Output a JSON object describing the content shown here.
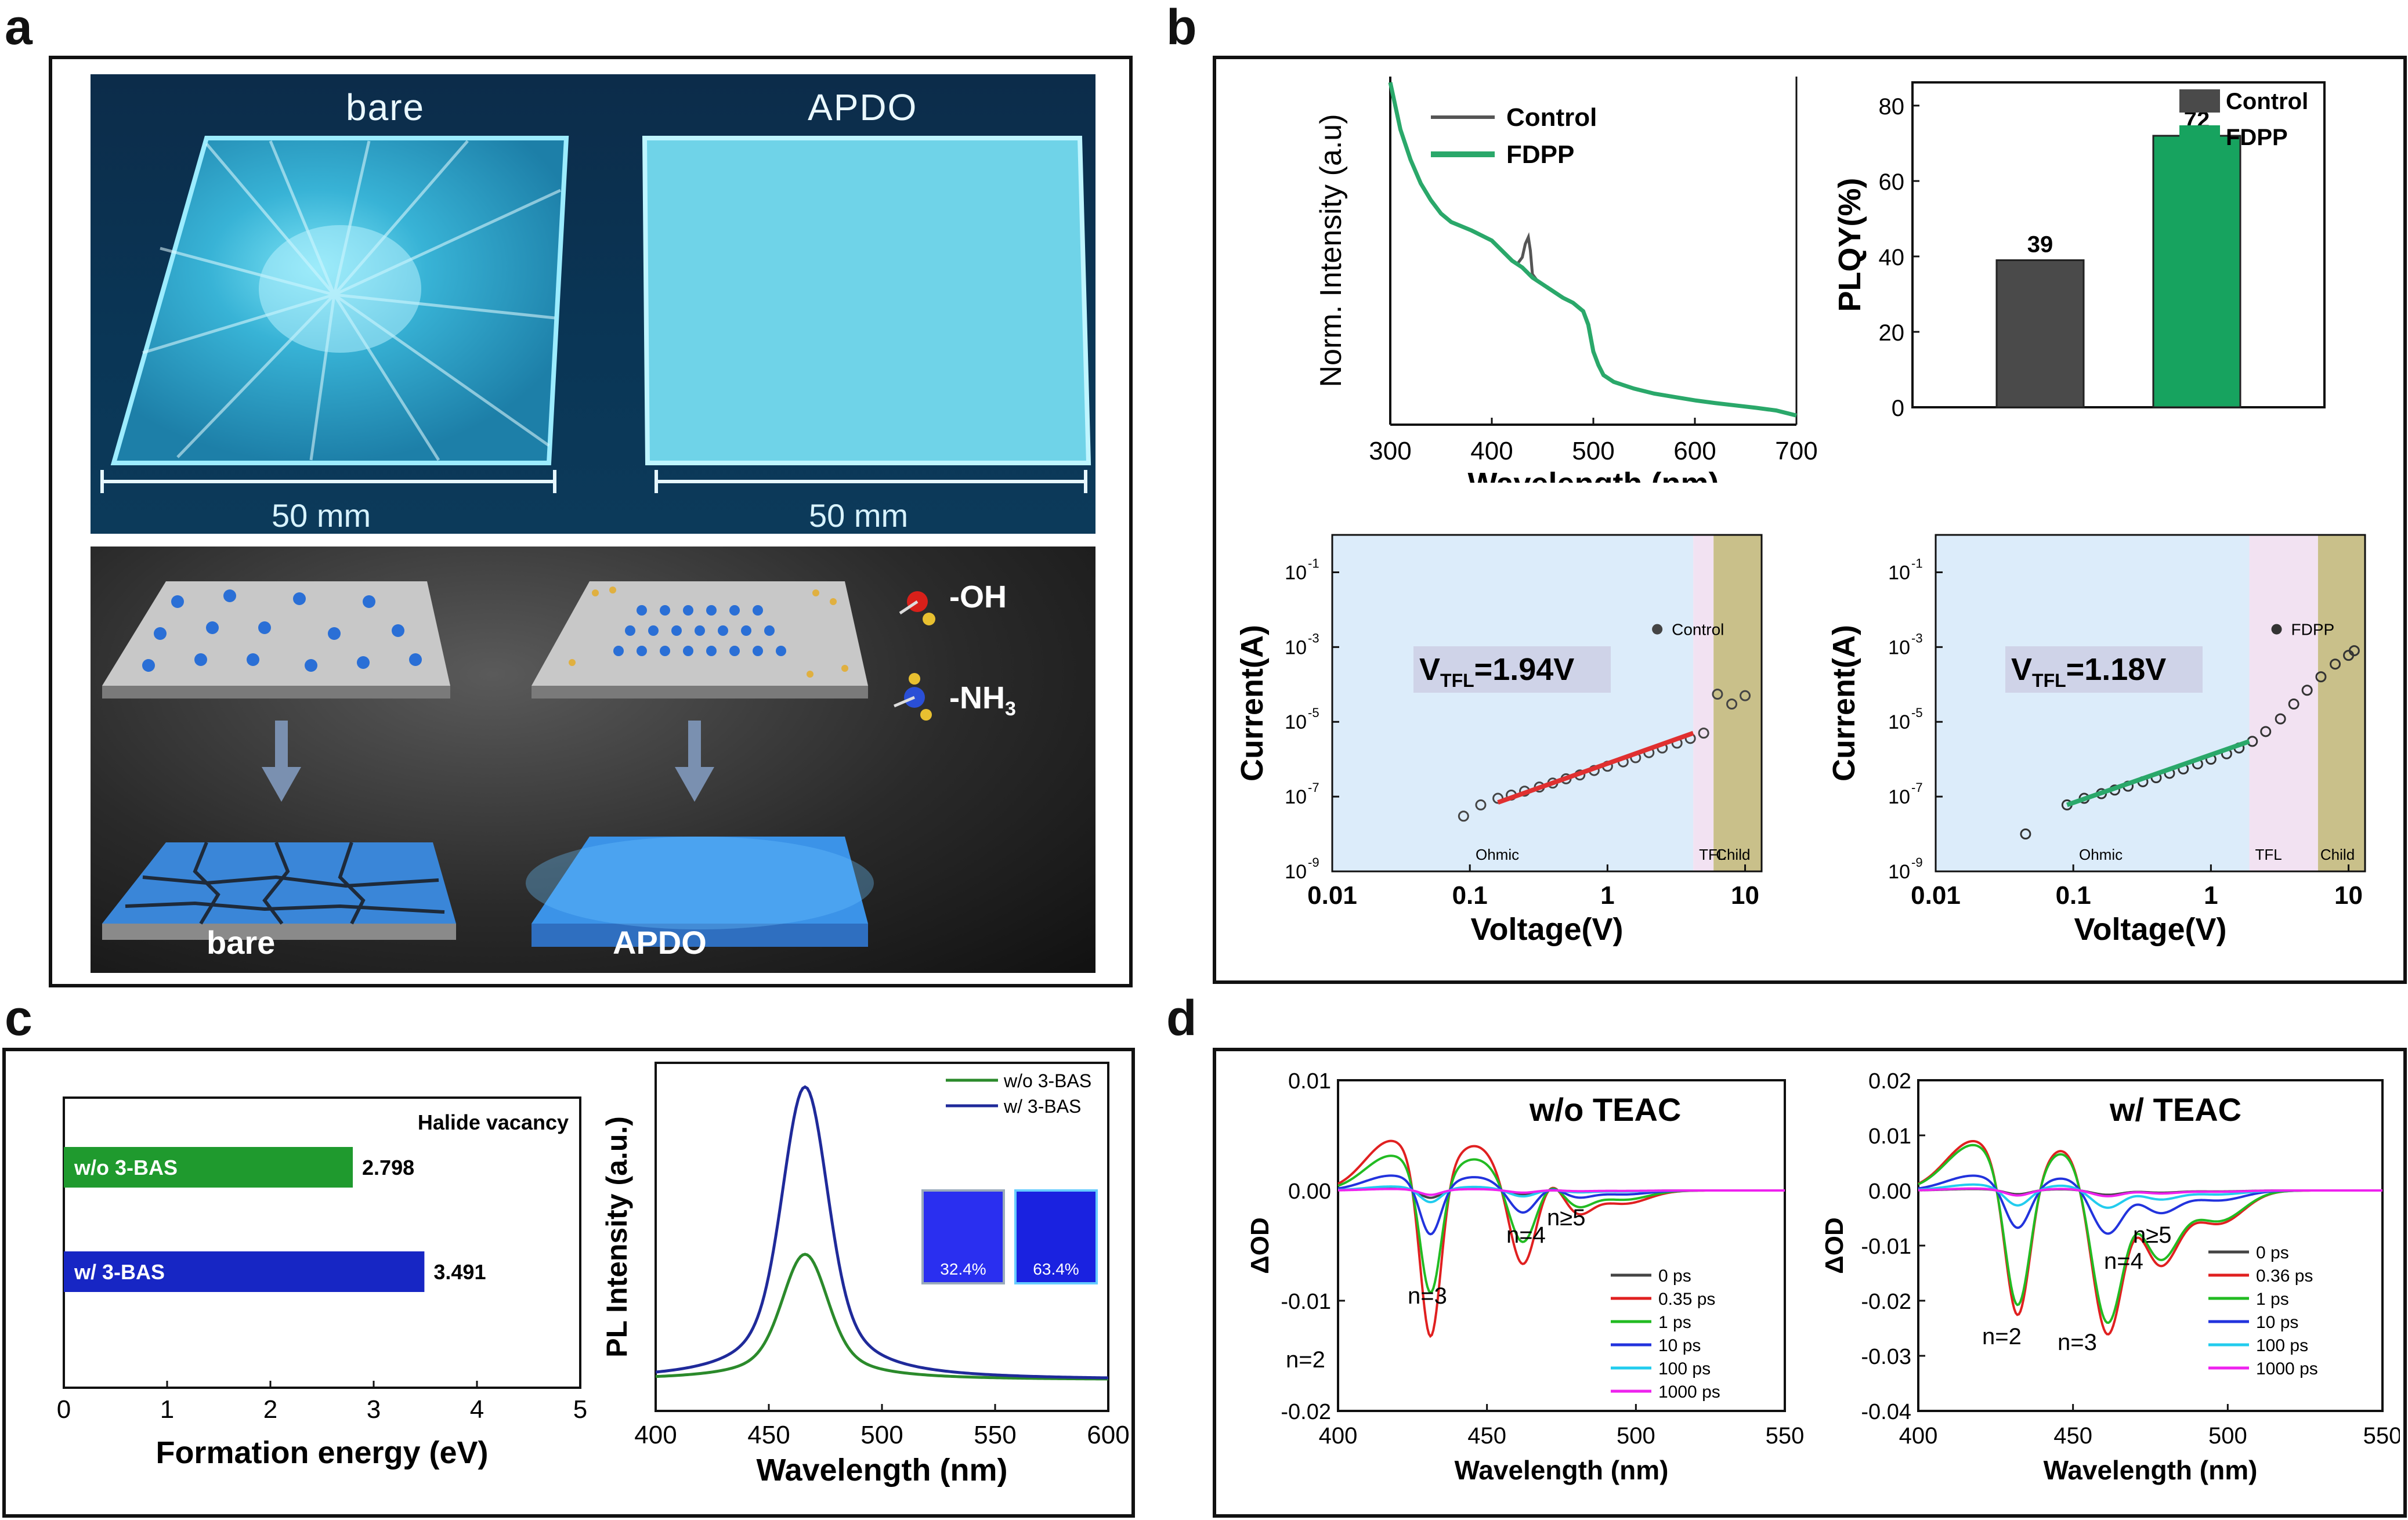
{
  "panel_labels": {
    "a": "a",
    "b": "b",
    "c": "c",
    "d": "d"
  },
  "panel_a": {
    "photo": {
      "left_label": "bare",
      "right_label": "APDO",
      "left_scale": "50 mm",
      "right_scale": "50 mm"
    },
    "schematic": {
      "legend_oh": "-OH",
      "legend_nh3_prefix": "-NH",
      "legend_nh3_sub": "3",
      "left_label": "bare",
      "right_label": "APDO"
    }
  },
  "chart_data": [
    {
      "id": "b_absorption",
      "type": "line",
      "xlabel": "Wavelength (nm)",
      "ylabel": "Norm. Intensity (a.u)",
      "xlim": [
        300,
        700
      ],
      "xticks": [
        "300",
        "400",
        "500",
        "600",
        "700"
      ],
      "legend": [
        "Control",
        "FDPP"
      ],
      "series": [
        {
          "name": "Control",
          "color": "#555555",
          "x": [
            300,
            305,
            310,
            320,
            330,
            340,
            350,
            360,
            380,
            400,
            410,
            420,
            425,
            430,
            433,
            436,
            438,
            440,
            445,
            450,
            460,
            470,
            480,
            490,
            495,
            500,
            505,
            510,
            520,
            540,
            560,
            580,
            600,
            620,
            640,
            660,
            680,
            700
          ],
          "y": [
            1.0,
            0.93,
            0.86,
            0.77,
            0.7,
            0.65,
            0.61,
            0.585,
            0.56,
            0.53,
            0.5,
            0.47,
            0.46,
            0.48,
            0.52,
            0.54,
            0.5,
            0.43,
            0.41,
            0.4,
            0.38,
            0.36,
            0.345,
            0.32,
            0.28,
            0.2,
            0.16,
            0.13,
            0.11,
            0.09,
            0.075,
            0.065,
            0.055,
            0.047,
            0.04,
            0.033,
            0.025,
            0.01
          ]
        },
        {
          "name": "FDPP",
          "color": "#2aa86a",
          "x": [
            300,
            305,
            310,
            320,
            330,
            340,
            350,
            360,
            380,
            400,
            410,
            420,
            430,
            440,
            450,
            460,
            470,
            480,
            490,
            495,
            500,
            505,
            510,
            520,
            540,
            560,
            580,
            600,
            620,
            640,
            660,
            680,
            700
          ],
          "y": [
            1.0,
            0.93,
            0.86,
            0.77,
            0.7,
            0.65,
            0.61,
            0.585,
            0.56,
            0.53,
            0.5,
            0.47,
            0.45,
            0.42,
            0.4,
            0.38,
            0.36,
            0.345,
            0.32,
            0.28,
            0.2,
            0.16,
            0.13,
            0.11,
            0.09,
            0.075,
            0.065,
            0.055,
            0.047,
            0.04,
            0.033,
            0.025,
            0.01
          ]
        }
      ]
    },
    {
      "id": "b_plqy",
      "type": "bar",
      "ylabel": "PLQY(%)",
      "ylim": [
        0,
        80
      ],
      "yticks": [
        "0",
        "20",
        "40",
        "60",
        "80"
      ],
      "categories": [
        "Control",
        "FDPP"
      ],
      "values": [
        39,
        72
      ],
      "value_labels": [
        "39",
        "72"
      ],
      "colors": [
        "#4a4a4a",
        "#17a35f"
      ],
      "legend": [
        "Control",
        "FDPP"
      ]
    },
    {
      "id": "b_sclc_control",
      "type": "scatter",
      "xlabel": "Voltage(V)",
      "ylabel": "Current(A)",
      "xlim_log": [
        -2,
        1.12
      ],
      "ylim_log": [
        -9,
        0
      ],
      "xticks": [
        "0.01",
        "0.1",
        "1",
        "10"
      ],
      "ytick_bases": [
        "10",
        "10",
        "10",
        "10",
        "10"
      ],
      "ytick_exps": [
        "-1",
        "-3",
        "-5",
        "-7",
        "-9"
      ],
      "legend": "Control",
      "vtfl_main": "V",
      "vtfl_sub": "TFL",
      "vtfl_value": "=1.94V",
      "regions": [
        "Ohmic",
        "TFL",
        "Child"
      ],
      "points_x": [
        0.09,
        0.12,
        0.16,
        0.2,
        0.25,
        0.32,
        0.4,
        0.5,
        0.63,
        0.8,
        1.0,
        1.3,
        1.6,
        2.0,
        2.5,
        3.2,
        4.0,
        5.0,
        6.3,
        8.0,
        10.0
      ],
      "points_y": [
        3e-08,
        6e-08,
        9e-08,
        1.1e-07,
        1.4e-07,
        1.8e-07,
        2.3e-07,
        3e-07,
        3.8e-07,
        5e-07,
        6.5e-07,
        8.5e-07,
        1.1e-06,
        1.5e-06,
        2e-06,
        2.7e-06,
        3.6e-06,
        5e-06,
        5.5e-05,
        3e-05,
        5e-05
      ],
      "outlier": {
        "x": 2.3,
        "y": 0.003
      }
    },
    {
      "id": "b_sclc_fdpp",
      "type": "scatter",
      "xlabel": "Voltage(V)",
      "ylabel": "Current(A)",
      "xlim_log": [
        -2,
        1.12
      ],
      "ylim_log": [
        -9,
        0
      ],
      "xticks": [
        "0.01",
        "0.1",
        "1",
        "10"
      ],
      "ytick_bases": [
        "10",
        "10",
        "10",
        "10",
        "10"
      ],
      "ytick_exps": [
        "-1",
        "-3",
        "-5",
        "-7",
        "-9"
      ],
      "legend": "FDPP",
      "vtfl_main": "V",
      "vtfl_sub": "TFL",
      "vtfl_value": "=1.18V",
      "regions": [
        "Ohmic",
        "TFL",
        "Child"
      ],
      "points_x": [
        0.045,
        0.09,
        0.12,
        0.16,
        0.2,
        0.25,
        0.32,
        0.4,
        0.5,
        0.63,
        0.8,
        1.0,
        1.3,
        1.6,
        2.0,
        2.5,
        3.2,
        4.0,
        5.0,
        6.3,
        8.0,
        10.0,
        11.0
      ],
      "points_y": [
        1e-08,
        6e-08,
        9e-08,
        1.2e-07,
        1.5e-07,
        1.9e-07,
        2.5e-07,
        3.2e-07,
        4.2e-07,
        5.5e-07,
        7.5e-07,
        1e-06,
        1.4e-06,
        2e-06,
        3e-06,
        5.5e-06,
        1.2e-05,
        3e-05,
        7e-05,
        0.00016,
        0.00035,
        0.0006,
        0.0008
      ],
      "outlier": {
        "x": 3.0,
        "y": 0.003
      }
    },
    {
      "id": "c_formation",
      "type": "bar",
      "orientation": "horizontal",
      "xlabel": "Formation energy (eV)",
      "xlim": [
        0,
        5
      ],
      "xticks": [
        "0",
        "1",
        "2",
        "3",
        "4",
        "5"
      ],
      "title": "Halide vacancy",
      "categories": [
        "w/o 3-BAS",
        "w/   3-BAS"
      ],
      "values": [
        2.798,
        3.491
      ],
      "value_labels": [
        "2.798",
        "3.491"
      ],
      "colors": [
        "#1f9a2e",
        "#1726c4"
      ]
    },
    {
      "id": "c_pl",
      "type": "line",
      "xlabel": "Wavelength (nm)",
      "ylabel": "PL Intensity (a.u.)",
      "xlim": [
        400,
        600
      ],
      "xticks": [
        "400",
        "450",
        "500",
        "550",
        "600"
      ],
      "legend": [
        "w/o 3-BAS",
        "w/   3-BAS"
      ],
      "series": [
        {
          "name": "w/o 3-BAS",
          "color": "#2b8a2b",
          "peak": 466,
          "amp": 0.42,
          "fwhm": 22
        },
        {
          "name": "w/   3-BAS",
          "color": "#1f2a9a",
          "peak": 466,
          "amp": 0.98,
          "fwhm": 22
        }
      ],
      "inset_labels": [
        "32.4%",
        "63.4%"
      ]
    },
    {
      "id": "d_woteac",
      "type": "line",
      "title": "w/o TEAC",
      "xlabel": "Wavelength (nm)",
      "ylabel": "ΔOD",
      "xlim": [
        400,
        550
      ],
      "ylim": [
        -0.02,
        0.01
      ],
      "xticks": [
        "400",
        "450",
        "500",
        "550"
      ],
      "yticks": [
        "0.01",
        "0.00",
        "-0.01",
        "-0.02"
      ],
      "legend": [
        "0 ps",
        "0.35 ps",
        "1 ps",
        "10 ps",
        "100 ps",
        "1000 ps"
      ],
      "colors": [
        "#444444",
        "#e02020",
        "#22bb22",
        "#2233dd",
        "#22ccee",
        "#ee22ee"
      ],
      "amplitudes": [
        0.05,
        1.0,
        0.7,
        0.3,
        0.08,
        0.03
      ],
      "annotations": [
        "n=2",
        "n=3",
        "n=4",
        "n≥5"
      ],
      "peaks": [
        {
          "c": 431,
          "w": 3.5,
          "a": -0.0155
        },
        {
          "c": 462,
          "w": 4.5,
          "a": -0.0075
        },
        {
          "c": 480,
          "w": 5,
          "a": -0.0022
        },
        {
          "c": 496,
          "w": 8,
          "a": -0.0012
        }
      ],
      "pos": [
        {
          "c": 418,
          "w": 9,
          "a": 0.0045
        },
        {
          "c": 446,
          "w": 8,
          "a": 0.004
        },
        {
          "c": 471,
          "w": 5,
          "a": 0.0015
        }
      ]
    },
    {
      "id": "d_wteac",
      "type": "line",
      "title": "w/ TEAC",
      "xlabel": "Wavelength (nm)",
      "ylabel": "ΔOD",
      "xlim": [
        400,
        550
      ],
      "ylim": [
        -0.04,
        0.02
      ],
      "xticks": [
        "400",
        "450",
        "500",
        "550"
      ],
      "yticks": [
        "0.02",
        "0.01",
        "0.00",
        "-0.01",
        "-0.02",
        "-0.03",
        "-0.04"
      ],
      "legend": [
        "0 ps",
        "0.36 ps",
        "1 ps",
        "10 ps",
        "100 ps",
        "1000 ps"
      ],
      "colors": [
        "#444444",
        "#e02020",
        "#22bb22",
        "#2233dd",
        "#22ccee",
        "#ee22ee"
      ],
      "amplitudes": [
        0.03,
        1.0,
        0.92,
        0.3,
        0.12,
        0.04
      ],
      "annotations": [
        "n=2",
        "n=3",
        "n=4",
        "n≥5"
      ],
      "peaks": [
        {
          "c": 432,
          "w": 4,
          "a": -0.026
        },
        {
          "c": 461,
          "w": 5,
          "a": -0.027
        },
        {
          "c": 478,
          "w": 6,
          "a": -0.0135
        },
        {
          "c": 497,
          "w": 8,
          "a": -0.006
        }
      ],
      "pos": [
        {
          "c": 418,
          "w": 9,
          "a": 0.009
        },
        {
          "c": 447,
          "w": 7,
          "a": 0.0075
        },
        {
          "c": 470,
          "w": 4,
          "a": 0.002
        }
      ]
    }
  ]
}
